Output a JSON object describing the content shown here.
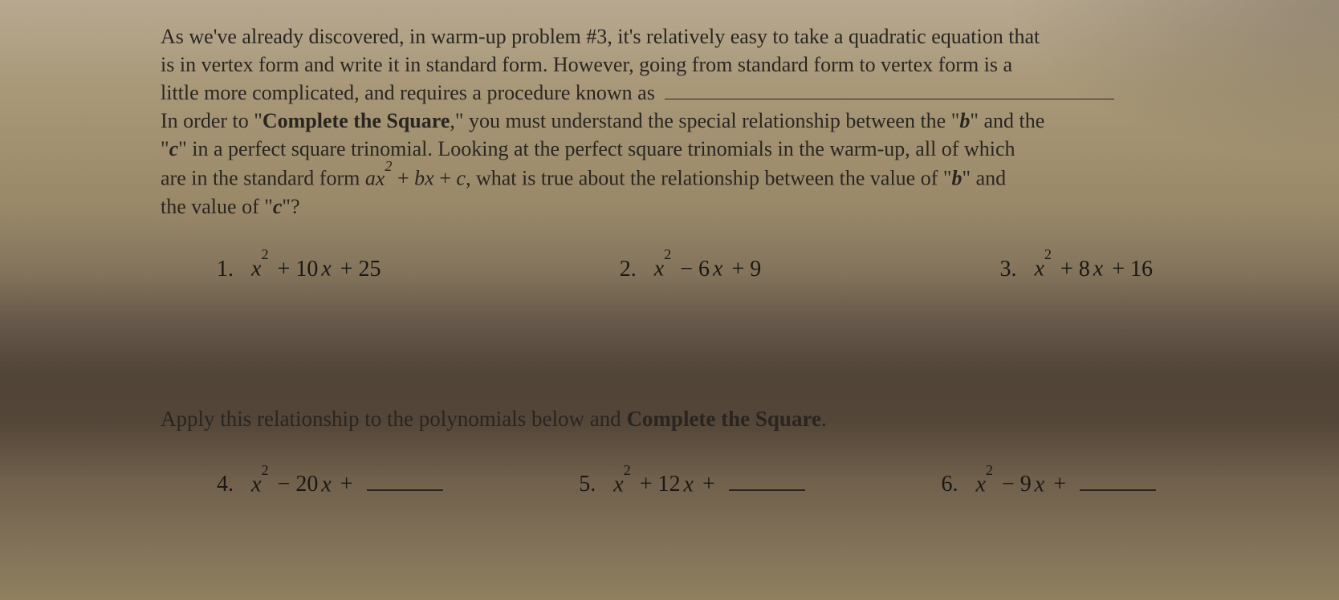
{
  "paragraph": {
    "line1a": "As we've already discovered, in warm-up problem #3, it's relatively easy to take a quadratic equation that",
    "line2": "is in vertex form and write it in standard form.  However, going from standard form to vertex form is a",
    "line3a": "little more complicated, and requires a procedure known as ",
    "line4a": "In order to \"",
    "line4bold": "Complete the Square",
    "line4b": ",\" you must understand the special relationship between the \"",
    "line4bvar": "b",
    "line4c": "\" and the",
    "line5a": "\"",
    "line5avar": "c",
    "line5b": "\" in a perfect square trinomial.  Looking at the perfect square trinomials in the warm-up, all of which",
    "line6a": "are in the standard form ",
    "formula_a": "a",
    "formula_x2": "x",
    "formula_plus1": " + ",
    "formula_b": "b",
    "formula_x": "x",
    "formula_plus2": " + ",
    "formula_c": "c",
    "line6b": ", what is true about the relationship between the value of \"",
    "line6bvar": "b",
    "line6c": "\" and",
    "line7a": "the value of \"",
    "line7avar": "c",
    "line7b": "\"?"
  },
  "problems_top": [
    {
      "num": "1.",
      "a": "x",
      "b": " + 10",
      "c": " + 25"
    },
    {
      "num": "2.",
      "a": "x",
      "b": " − 6",
      "c": " + 9"
    },
    {
      "num": "3.",
      "a": "x",
      "b": " + 8",
      "c": " + 16"
    }
  ],
  "apply_line": {
    "text_a": "Apply this relationship to the polynomials below and ",
    "bold": "Complete the Square",
    "text_b": "."
  },
  "problems_bottom": [
    {
      "num": "4.",
      "a": "x",
      "b": " − 20",
      "c": " + "
    },
    {
      "num": "5.",
      "a": "x",
      "b": " + 12",
      "c": " + "
    },
    {
      "num": "6.",
      "a": "x",
      "b": " − 9",
      "c": " + "
    }
  ],
  "colors": {
    "text": "#1a1a1a",
    "paper_light": "#b8a890",
    "paper_dark": "#605040"
  }
}
